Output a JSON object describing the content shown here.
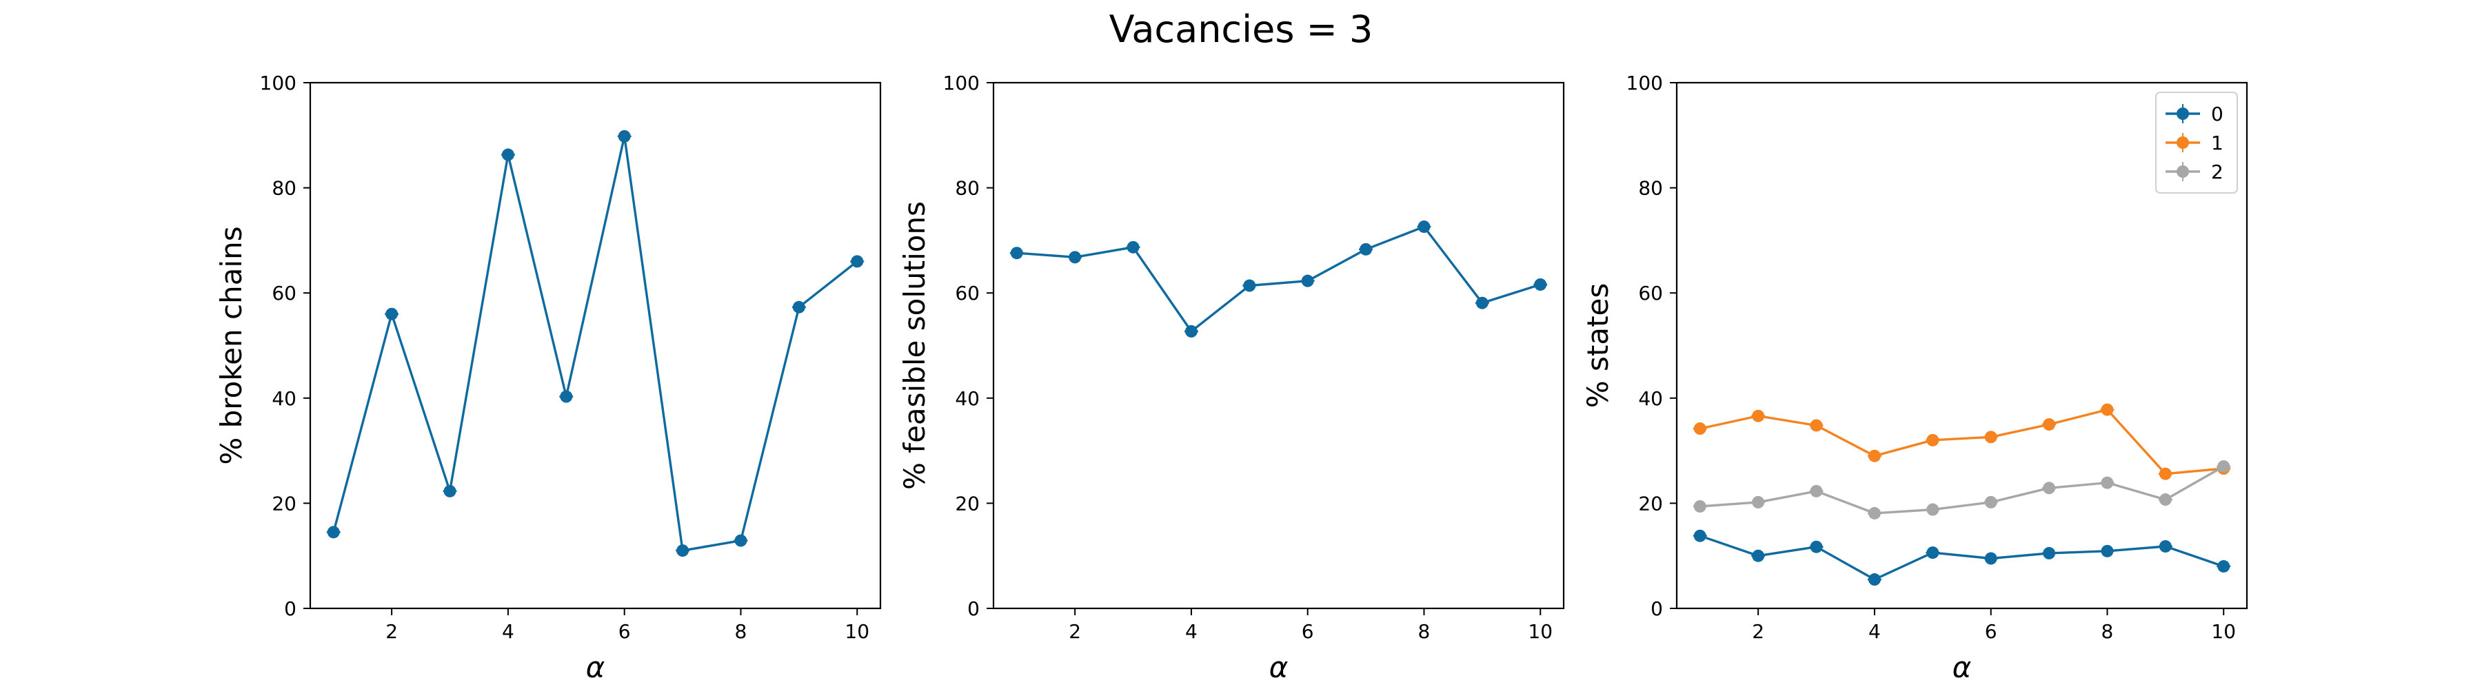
{
  "figure": {
    "title": "Vacancies = 3"
  },
  "chart_data": [
    {
      "type": "line",
      "title": "",
      "xlabel": "α",
      "ylabel": "% broken chains",
      "xlim": [
        0.6,
        10.4
      ],
      "ylim": [
        0,
        100
      ],
      "xticks": [
        2,
        4,
        6,
        8,
        10
      ],
      "yticks": [
        0,
        20,
        40,
        60,
        80,
        100
      ],
      "grid": false,
      "x": [
        1,
        2,
        3,
        4,
        5,
        6,
        7,
        8,
        9,
        10
      ],
      "series": [
        {
          "color": "#0f6aa0",
          "values": [
            14.5,
            56,
            22.3,
            86.3,
            40.3,
            89.8,
            11,
            12.9,
            57.3,
            66
          ]
        }
      ]
    },
    {
      "type": "line",
      "title": "",
      "xlabel": "α",
      "ylabel": "% feasible solutions",
      "xlim": [
        0.6,
        10.4
      ],
      "ylim": [
        0,
        100
      ],
      "xticks": [
        2,
        4,
        6,
        8,
        10
      ],
      "yticks": [
        0,
        20,
        40,
        60,
        80,
        100
      ],
      "grid": false,
      "x": [
        1,
        2,
        3,
        4,
        5,
        6,
        7,
        8,
        9,
        10
      ],
      "series": [
        {
          "color": "#0f6aa0",
          "values": [
            67.6,
            66.8,
            68.7,
            52.7,
            61.4,
            62.3,
            68.3,
            72.6,
            58.1,
            61.6
          ]
        }
      ]
    },
    {
      "type": "line",
      "title": "",
      "xlabel": "α",
      "ylabel": "% states",
      "xlim": [
        0.6,
        10.4
      ],
      "ylim": [
        0,
        100
      ],
      "xticks": [
        2,
        4,
        6,
        8,
        10
      ],
      "yticks": [
        0,
        20,
        40,
        60,
        80,
        100
      ],
      "grid": false,
      "legend": "top-right",
      "x": [
        1,
        2,
        3,
        4,
        5,
        6,
        7,
        8,
        9,
        10
      ],
      "series": [
        {
          "name": "0",
          "color": "#0f6aa0",
          "values": [
            13.8,
            10,
            11.7,
            5.5,
            10.6,
            9.5,
            10.5,
            10.9,
            11.8,
            8
          ]
        },
        {
          "name": "1",
          "color": "#f5831f",
          "values": [
            34.2,
            36.6,
            34.8,
            29,
            32,
            32.6,
            35,
            37.8,
            25.6,
            26.6
          ]
        },
        {
          "name": "2",
          "color": "#a7a7a7",
          "values": [
            19.4,
            20.2,
            22.3,
            18.1,
            18.8,
            20.2,
            22.9,
            23.9,
            20.7,
            27
          ]
        }
      ]
    }
  ]
}
